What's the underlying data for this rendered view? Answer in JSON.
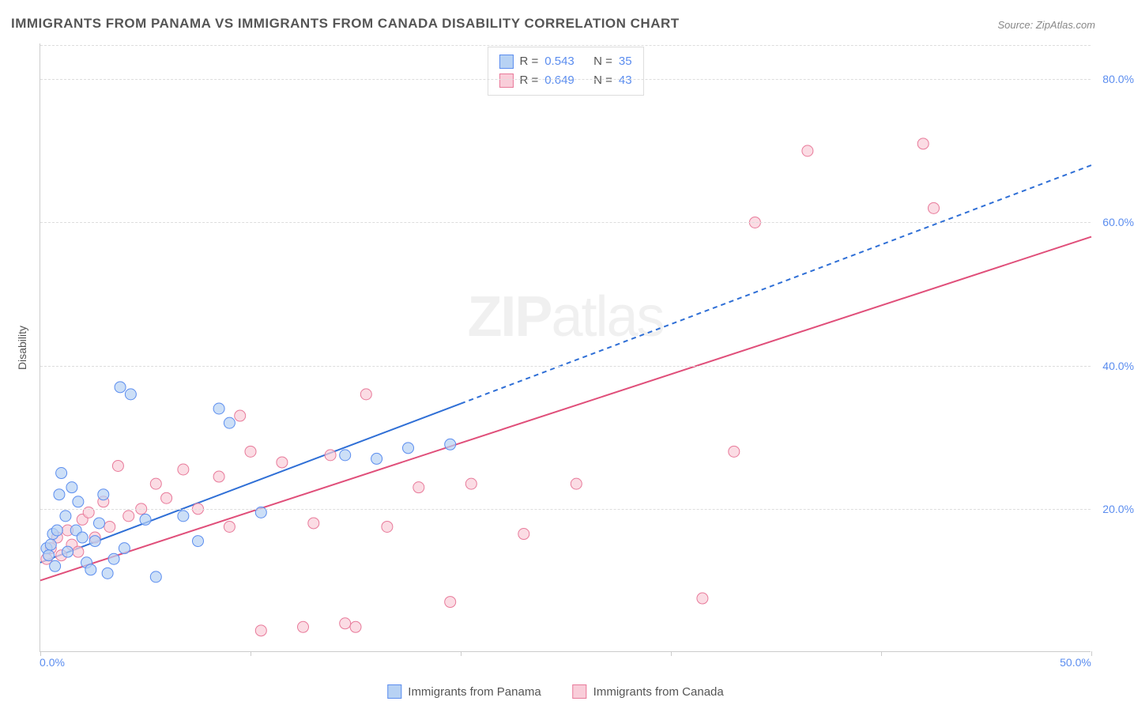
{
  "title": "IMMIGRANTS FROM PANAMA VS IMMIGRANTS FROM CANADA DISABILITY CORRELATION CHART",
  "source": "Source: ZipAtlas.com",
  "watermark_main": "ZIP",
  "watermark_sub": "atlas",
  "chart": {
    "type": "scatter",
    "xlim": [
      0,
      50
    ],
    "ylim": [
      0,
      85
    ],
    "x_tick_positions": [
      0,
      10,
      20,
      30,
      40,
      50
    ],
    "x_tick_labels": [
      "0.0%",
      "",
      "",
      "",
      "",
      "50.0%"
    ],
    "y_ticks": [
      20,
      40,
      60,
      80
    ],
    "y_tick_labels": [
      "20.0%",
      "40.0%",
      "60.0%",
      "80.0%"
    ],
    "grid_color": "#dddddd",
    "axis_color": "#cccccc",
    "background_color": "#ffffff",
    "yaxis_title": "Disability"
  },
  "series": {
    "panama": {
      "label": "Immigrants from Panama",
      "marker_fill": "#b7d2f4",
      "marker_stroke": "#5b8def",
      "marker_radius": 7,
      "line_color": "#2f6fd6",
      "line_width": 2,
      "line_solid_x_end": 20,
      "r_value": "0.543",
      "n_value": "35",
      "trend": {
        "x1": 0,
        "y1": 12.5,
        "x2": 50,
        "y2": 68
      },
      "points": [
        [
          0.3,
          14.5
        ],
        [
          0.4,
          13.5
        ],
        [
          0.5,
          15
        ],
        [
          0.6,
          16.5
        ],
        [
          0.7,
          12
        ],
        [
          0.8,
          17
        ],
        [
          0.9,
          22
        ],
        [
          1.0,
          25
        ],
        [
          1.2,
          19
        ],
        [
          1.3,
          14
        ],
        [
          1.5,
          23
        ],
        [
          1.7,
          17
        ],
        [
          1.8,
          21
        ],
        [
          2.0,
          16
        ],
        [
          2.2,
          12.5
        ],
        [
          2.4,
          11.5
        ],
        [
          2.6,
          15.5
        ],
        [
          2.8,
          18
        ],
        [
          3.0,
          22
        ],
        [
          3.2,
          11
        ],
        [
          3.5,
          13
        ],
        [
          3.8,
          37
        ],
        [
          4.0,
          14.5
        ],
        [
          4.3,
          36
        ],
        [
          5.0,
          18.5
        ],
        [
          5.5,
          10.5
        ],
        [
          6.8,
          19
        ],
        [
          7.5,
          15.5
        ],
        [
          8.5,
          34
        ],
        [
          9.0,
          32
        ],
        [
          10.5,
          19.5
        ],
        [
          14.5,
          27.5
        ],
        [
          16.0,
          27
        ],
        [
          17.5,
          28.5
        ],
        [
          19.5,
          29
        ]
      ]
    },
    "canada": {
      "label": "Immigrants from Canada",
      "marker_fill": "#f9cdd9",
      "marker_stroke": "#e87a9a",
      "marker_radius": 7,
      "line_color": "#e04f7a",
      "line_width": 2,
      "r_value": "0.649",
      "n_value": "43",
      "trend": {
        "x1": 0,
        "y1": 10,
        "x2": 50,
        "y2": 58
      },
      "points": [
        [
          0.3,
          13
        ],
        [
          0.5,
          14.5
        ],
        [
          0.8,
          16
        ],
        [
          1.0,
          13.5
        ],
        [
          1.3,
          17
        ],
        [
          1.5,
          15
        ],
        [
          1.8,
          14
        ],
        [
          2.0,
          18.5
        ],
        [
          2.3,
          19.5
        ],
        [
          2.6,
          16
        ],
        [
          3.0,
          21
        ],
        [
          3.3,
          17.5
        ],
        [
          3.7,
          26
        ],
        [
          4.2,
          19
        ],
        [
          4.8,
          20
        ],
        [
          5.5,
          23.5
        ],
        [
          6.0,
          21.5
        ],
        [
          6.8,
          25.5
        ],
        [
          7.5,
          20
        ],
        [
          8.5,
          24.5
        ],
        [
          9.0,
          17.5
        ],
        [
          9.5,
          33
        ],
        [
          10.0,
          28
        ],
        [
          10.5,
          3
        ],
        [
          11.5,
          26.5
        ],
        [
          12.5,
          3.5
        ],
        [
          13.0,
          18
        ],
        [
          13.8,
          27.5
        ],
        [
          14.5,
          4
        ],
        [
          15.0,
          3.5
        ],
        [
          15.5,
          36
        ],
        [
          16.5,
          17.5
        ],
        [
          18.0,
          23
        ],
        [
          19.5,
          7
        ],
        [
          20.5,
          23.5
        ],
        [
          23.0,
          16.5
        ],
        [
          25.5,
          23.5
        ],
        [
          31.5,
          7.5
        ],
        [
          33.0,
          28
        ],
        [
          34.0,
          60
        ],
        [
          36.5,
          70
        ],
        [
          42.0,
          71
        ],
        [
          42.5,
          62
        ]
      ]
    }
  },
  "legend_top": {
    "r_label": "R =",
    "n_label": "N ="
  }
}
